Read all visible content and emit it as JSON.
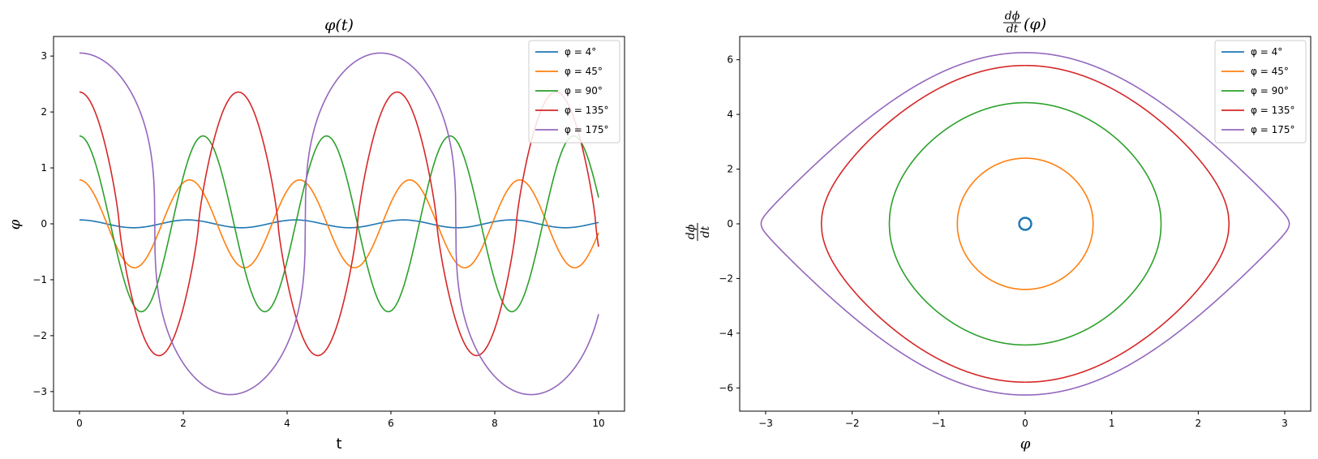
{
  "colors": [
    "#1f77b4",
    "#ff7f0e",
    "#2ca02c",
    "#d62728",
    "#9467bd"
  ],
  "chart_data": [
    {
      "type": "line",
      "title": "φ(t)",
      "xlabel": "t",
      "ylabel": "φ",
      "xlim": [
        -0.5,
        10.5
      ],
      "ylim": [
        -3.35,
        3.35
      ],
      "xticks": [
        0,
        2,
        4,
        6,
        8,
        10
      ],
      "yticks": [
        -3,
        -2,
        -1,
        0,
        1,
        2,
        3
      ],
      "legend_position": "top-right",
      "t_range": [
        0,
        10
      ],
      "series": [
        {
          "name": "φ = 4°",
          "initial_angle_deg": 4,
          "amplitude": 0.0698,
          "period": 2.08
        },
        {
          "name": "φ = 45°",
          "initial_angle_deg": 45,
          "amplitude": 0.785,
          "period": 2.12
        },
        {
          "name": "φ = 90°",
          "initial_angle_deg": 90,
          "amplitude": 1.571,
          "period": 2.38
        },
        {
          "name": "φ = 135°",
          "initial_angle_deg": 135,
          "amplitude": 2.356,
          "period": 3.06
        },
        {
          "name": "φ = 175°",
          "initial_angle_deg": 175,
          "amplitude": 3.054,
          "period": 5.8
        }
      ]
    },
    {
      "type": "line",
      "title": "dφ/dt (φ)",
      "xlabel": "φ",
      "ylabel": "dφ/dt",
      "xlim": [
        -3.3,
        3.3
      ],
      "ylim": [
        -6.85,
        6.85
      ],
      "xticks": [
        -3,
        -2,
        -1,
        0,
        1,
        2,
        3
      ],
      "yticks": [
        -6,
        -4,
        -2,
        0,
        2,
        4,
        6
      ],
      "legend_position": "top-right",
      "series": [
        {
          "name": "φ = 4°",
          "phi_max": 0.0698,
          "dphi_max": 0.22
        },
        {
          "name": "φ = 45°",
          "phi_max": 0.785,
          "dphi_max": 2.4
        },
        {
          "name": "φ = 90°",
          "phi_max": 1.571,
          "dphi_max": 4.43
        },
        {
          "name": "φ = 135°",
          "phi_max": 2.356,
          "dphi_max": 5.79
        },
        {
          "name": "φ = 175°",
          "phi_max": 3.054,
          "dphi_max": 6.26
        }
      ]
    }
  ]
}
